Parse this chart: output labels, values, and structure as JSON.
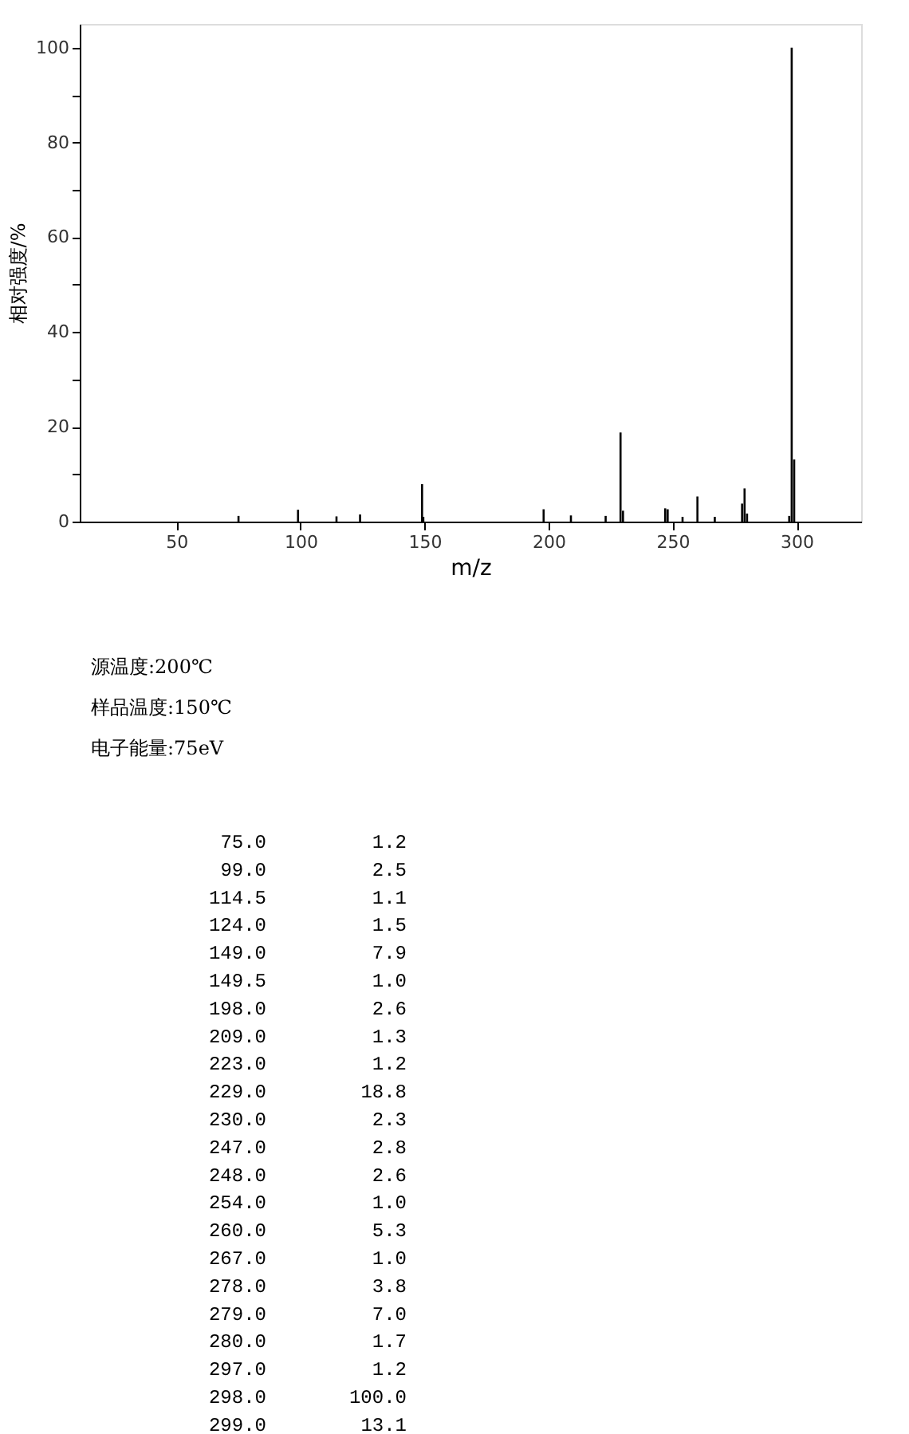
{
  "chart_data": {
    "type": "bar",
    "xlabel": "m/z",
    "ylabel": "相对强度/%",
    "x": [
      75.0,
      99.0,
      114.5,
      124.0,
      149.0,
      149.5,
      198.0,
      209.0,
      223.0,
      229.0,
      230.0,
      247.0,
      248.0,
      254.0,
      260.0,
      267.0,
      278.0,
      279.0,
      280.0,
      297.0,
      298.0,
      299.0
    ],
    "values": [
      1.2,
      2.5,
      1.1,
      1.5,
      7.9,
      1.0,
      2.6,
      1.3,
      1.2,
      18.8,
      2.3,
      2.8,
      2.6,
      1.0,
      5.3,
      1.0,
      3.8,
      7.0,
      1.7,
      1.2,
      100.0,
      13.1
    ],
    "color": "#000000",
    "xlim": [
      11,
      326
    ],
    "xticks": [
      50,
      100,
      150,
      200,
      250,
      300
    ],
    "ylim": [
      0,
      105
    ],
    "yticks": [
      0,
      {
        "value": 10,
        "label": null
      },
      20,
      {
        "value": 30,
        "label": null
      },
      40,
      {
        "value": 50,
        "label": null
      },
      60,
      {
        "value": 70,
        "label": null
      },
      80,
      {
        "value": 90,
        "label": null
      },
      100
    ],
    "grid": false,
    "annotations": [
      "源温度:200℃",
      "样品温度:150℃",
      "电子能量:75eV",
      "75.0",
      "1.2",
      "99.0",
      "2.5",
      "114.5",
      "1.1",
      "124.0",
      "1.5",
      "149.0",
      "7.9",
      "149.5",
      "1.0",
      "198.0",
      "2.6",
      "209.0",
      "1.3",
      "223.0",
      "1.2",
      "229.0",
      "18.8",
      "230.0",
      "2.3",
      "247.0",
      "2.8",
      "248.0",
      "2.6",
      "254.0",
      "1.0",
      "260.0",
      "5.3",
      "267.0",
      "1.0",
      "278.0",
      "3.8",
      "279.0",
      "7.0",
      "280.0",
      "1.7",
      "297.0",
      "1.2",
      "298.0",
      "100.0",
      "299.0",
      "13.1"
    ]
  }
}
